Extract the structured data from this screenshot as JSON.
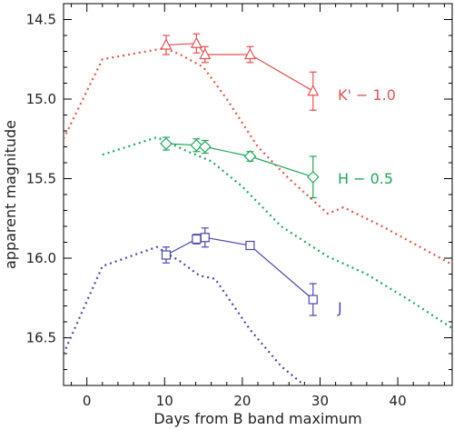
{
  "chart_data": {
    "type": "line",
    "title": "",
    "xlabel": "Days from B band maximum",
    "ylabel": "apparent magnitude",
    "xlim": [
      -3,
      47
    ],
    "ylim": [
      16.8,
      14.4
    ],
    "y_inverted": true,
    "x_ticks": [
      0,
      10,
      20,
      30,
      40
    ],
    "y_ticks": [
      14.5,
      15.0,
      15.5,
      16.0,
      16.5
    ],
    "grid": false,
    "series": [
      {
        "name": "K' − 1.0",
        "color": "#e8514f",
        "marker": "triangle",
        "points": [
          {
            "x": 10.2,
            "y": 14.66,
            "err": 0.06
          },
          {
            "x": 14.1,
            "y": 14.65,
            "err": 0.06
          },
          {
            "x": 15.2,
            "y": 14.72,
            "err": 0.05
          },
          {
            "x": 21.0,
            "y": 14.72,
            "err": 0.05
          },
          {
            "x": 29.1,
            "y": 14.95,
            "err": 0.12
          }
        ],
        "template": [
          {
            "x": -3,
            "y": 15.25
          },
          {
            "x": 2,
            "y": 14.75
          },
          {
            "x": 10,
            "y": 14.68
          },
          {
            "x": 12,
            "y": 14.72
          },
          {
            "x": 15,
            "y": 14.8
          },
          {
            "x": 18,
            "y": 15.0
          },
          {
            "x": 22,
            "y": 15.3
          },
          {
            "x": 26,
            "y": 15.5
          },
          {
            "x": 31,
            "y": 15.72
          },
          {
            "x": 33,
            "y": 15.68
          },
          {
            "x": 38,
            "y": 15.8
          },
          {
            "x": 47,
            "y": 16.04
          }
        ]
      },
      {
        "name": "H − 0.5",
        "color": "#1ea85a",
        "marker": "diamond",
        "points": [
          {
            "x": 10.2,
            "y": 15.28,
            "err": 0.04
          },
          {
            "x": 14.1,
            "y": 15.29,
            "err": 0.04
          },
          {
            "x": 15.2,
            "y": 15.3,
            "err": 0.04
          },
          {
            "x": 21.0,
            "y": 15.36,
            "err": 0.03
          },
          {
            "x": 29.1,
            "y": 15.49,
            "err": 0.13
          }
        ],
        "template": [
          {
            "x": 2,
            "y": 15.35
          },
          {
            "x": 9,
            "y": 15.24
          },
          {
            "x": 13,
            "y": 15.33
          },
          {
            "x": 16,
            "y": 15.39
          },
          {
            "x": 20,
            "y": 15.55
          },
          {
            "x": 25,
            "y": 15.8
          },
          {
            "x": 31,
            "y": 15.99
          },
          {
            "x": 36,
            "y": 16.1
          },
          {
            "x": 42,
            "y": 16.28
          },
          {
            "x": 47,
            "y": 16.44
          }
        ]
      },
      {
        "name": "J",
        "color": "#4a48b0",
        "marker": "square",
        "points": [
          {
            "x": 10.2,
            "y": 15.98,
            "err": 0.05
          },
          {
            "x": 14.1,
            "y": 15.88,
            "err": 0.03
          },
          {
            "x": 15.2,
            "y": 15.87,
            "err": 0.06
          },
          {
            "x": 21.0,
            "y": 15.92,
            "err": 0.02
          },
          {
            "x": 29.1,
            "y": 16.26,
            "err": 0.1
          }
        ],
        "template": [
          {
            "x": -3,
            "y": 16.6
          },
          {
            "x": 2,
            "y": 16.05
          },
          {
            "x": 9,
            "y": 15.93
          },
          {
            "x": 12,
            "y": 16.02
          },
          {
            "x": 14.5,
            "y": 16.11
          },
          {
            "x": 16.5,
            "y": 16.13
          },
          {
            "x": 21,
            "y": 16.45
          },
          {
            "x": 25,
            "y": 16.68
          },
          {
            "x": 28,
            "y": 16.8
          }
        ]
      }
    ]
  }
}
